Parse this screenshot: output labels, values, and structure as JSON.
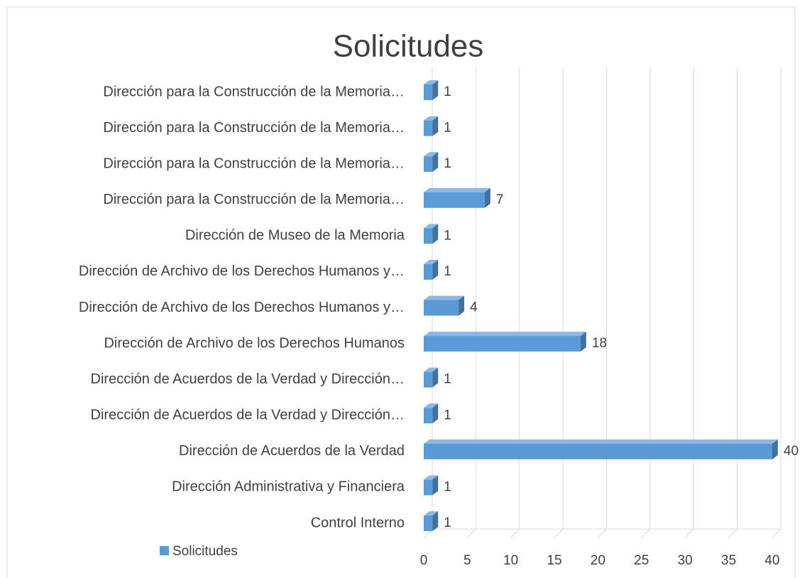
{
  "chart_data": {
    "type": "bar",
    "orientation": "horizontal",
    "title": "Solicitudes",
    "categories": [
      "Control Interno",
      "Dirección Administrativa y Financiera",
      "Dirección de Acuerdos de la Verdad",
      "Dirección de Acuerdos de la Verdad y Dirección…",
      "Dirección de Acuerdos de la Verdad y Dirección…",
      "Dirección de Archivo de los Derechos Humanos",
      "Dirección de Archivo de los Derechos Humanos y…",
      "Dirección de Archivo de los Derechos Humanos y…",
      "Dirección de Museo de la Memoria",
      "Dirección para la Construcción de la Memoria…",
      "Dirección para la Construcción de la Memoria…",
      "Dirección para la Construcción de la Memoria…",
      "Dirección para la Construcción de la Memoria…"
    ],
    "series": [
      {
        "name": "Solicitudes",
        "color": "#5b9bd5",
        "values": [
          1,
          1,
          40,
          1,
          1,
          18,
          4,
          1,
          1,
          7,
          1,
          1,
          1
        ]
      }
    ],
    "xlim": [
      0,
      40
    ],
    "xticks": [
      0,
      5,
      10,
      15,
      20,
      25,
      30,
      35,
      40
    ],
    "grid": true,
    "legend": "bottom-left"
  }
}
